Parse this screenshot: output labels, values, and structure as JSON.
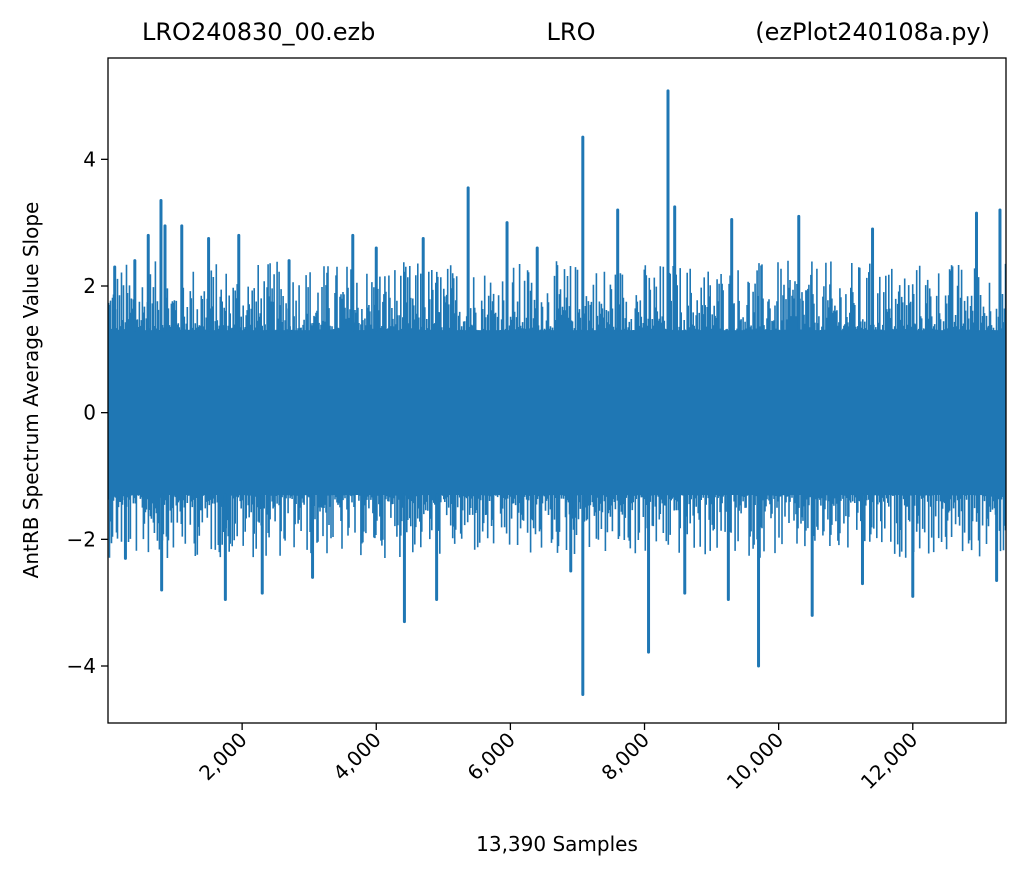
{
  "chart_data": {
    "type": "line",
    "title_left": "LRO240830_00.ezb",
    "title_center": "LRO",
    "title_right": "(ezPlot240108a.py)",
    "xlabel": "13,390 Samples",
    "ylabel": "AntRB Spectrum Average Value Slope",
    "xlim": [
      0,
      13390
    ],
    "ylim": [
      -4.9,
      5.6
    ],
    "x_ticks": [
      2000,
      4000,
      6000,
      8000,
      10000,
      12000
    ],
    "x_tick_labels": [
      "2,000",
      "4,000",
      "6,000",
      "8,000",
      "10,000",
      "12,000"
    ],
    "y_ticks": [
      -4,
      -2,
      0,
      2,
      4
    ],
    "y_tick_labels": [
      "−4",
      "−2",
      "0",
      "2",
      "4"
    ],
    "grid": false,
    "series": [
      {
        "color": "#1f77b4",
        "n_samples": 13390,
        "band_upper": 1.3,
        "band_lower": -1.3,
        "peaks": [
          {
            "x": 100,
            "y": 2.3
          },
          {
            "x": 400,
            "y": 2.4
          },
          {
            "x": 600,
            "y": 2.8
          },
          {
            "x": 790,
            "y": 3.35
          },
          {
            "x": 850,
            "y": 2.95
          },
          {
            "x": 1100,
            "y": 2.95
          },
          {
            "x": 1500,
            "y": 2.75
          },
          {
            "x": 1950,
            "y": 2.8
          },
          {
            "x": 2700,
            "y": 2.4
          },
          {
            "x": 3650,
            "y": 2.8
          },
          {
            "x": 4000,
            "y": 2.6
          },
          {
            "x": 4700,
            "y": 2.75
          },
          {
            "x": 5370,
            "y": 3.55
          },
          {
            "x": 5950,
            "y": 3.0
          },
          {
            "x": 6400,
            "y": 2.6
          },
          {
            "x": 7080,
            "y": 4.35
          },
          {
            "x": 7600,
            "y": 3.2
          },
          {
            "x": 8350,
            "y": 5.08
          },
          {
            "x": 8450,
            "y": 3.25
          },
          {
            "x": 9300,
            "y": 3.05
          },
          {
            "x": 10300,
            "y": 3.1
          },
          {
            "x": 11400,
            "y": 2.9
          },
          {
            "x": 12950,
            "y": 3.15
          },
          {
            "x": 13300,
            "y": 3.2
          },
          {
            "x": 260,
            "y": -2.3
          },
          {
            "x": 800,
            "y": -2.8
          },
          {
            "x": 1750,
            "y": -2.95
          },
          {
            "x": 2300,
            "y": -2.85
          },
          {
            "x": 3050,
            "y": -2.6
          },
          {
            "x": 4420,
            "y": -3.3
          },
          {
            "x": 4900,
            "y": -2.95
          },
          {
            "x": 6900,
            "y": -2.5
          },
          {
            "x": 7080,
            "y": -4.45
          },
          {
            "x": 8060,
            "y": -3.78
          },
          {
            "x": 8600,
            "y": -2.85
          },
          {
            "x": 9250,
            "y": -2.95
          },
          {
            "x": 9700,
            "y": -4.0
          },
          {
            "x": 10500,
            "y": -3.2
          },
          {
            "x": 11250,
            "y": -2.7
          },
          {
            "x": 12000,
            "y": -2.9
          },
          {
            "x": 13250,
            "y": -2.65
          }
        ]
      }
    ]
  }
}
